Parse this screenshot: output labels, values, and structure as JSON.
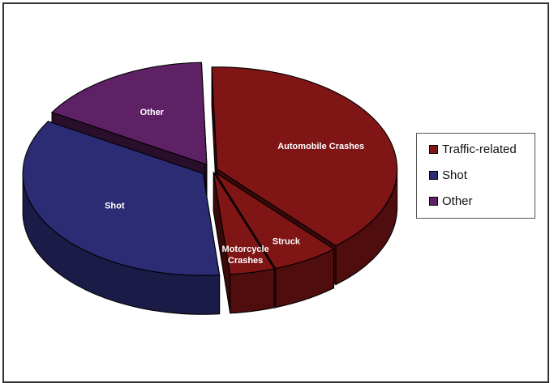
{
  "chart_data": {
    "type": "pie",
    "title": "",
    "style": "3d-exploded",
    "slices": [
      {
        "label": "Automobile Crashes",
        "value": 39,
        "category": "Traffic-related",
        "color": "#7F1515"
      },
      {
        "label": "Struck",
        "value": 6,
        "category": "Traffic-related",
        "color": "#7F1515"
      },
      {
        "label": "Motorcycle Crashes",
        "value": 4,
        "category": "Traffic-related",
        "color": "#7F1515"
      },
      {
        "label": "Shot",
        "value": 35,
        "category": "Shot",
        "color": "#2B2C74"
      },
      {
        "label": "Other",
        "value": 16,
        "category": "Other",
        "color": "#5E2165"
      }
    ],
    "legend": {
      "position": "right",
      "entries": [
        {
          "label": "Traffic-related",
          "color": "#7F1515"
        },
        {
          "label": "Shot",
          "color": "#2B2C74"
        },
        {
          "label": "Other",
          "color": "#5E2165"
        }
      ]
    }
  }
}
